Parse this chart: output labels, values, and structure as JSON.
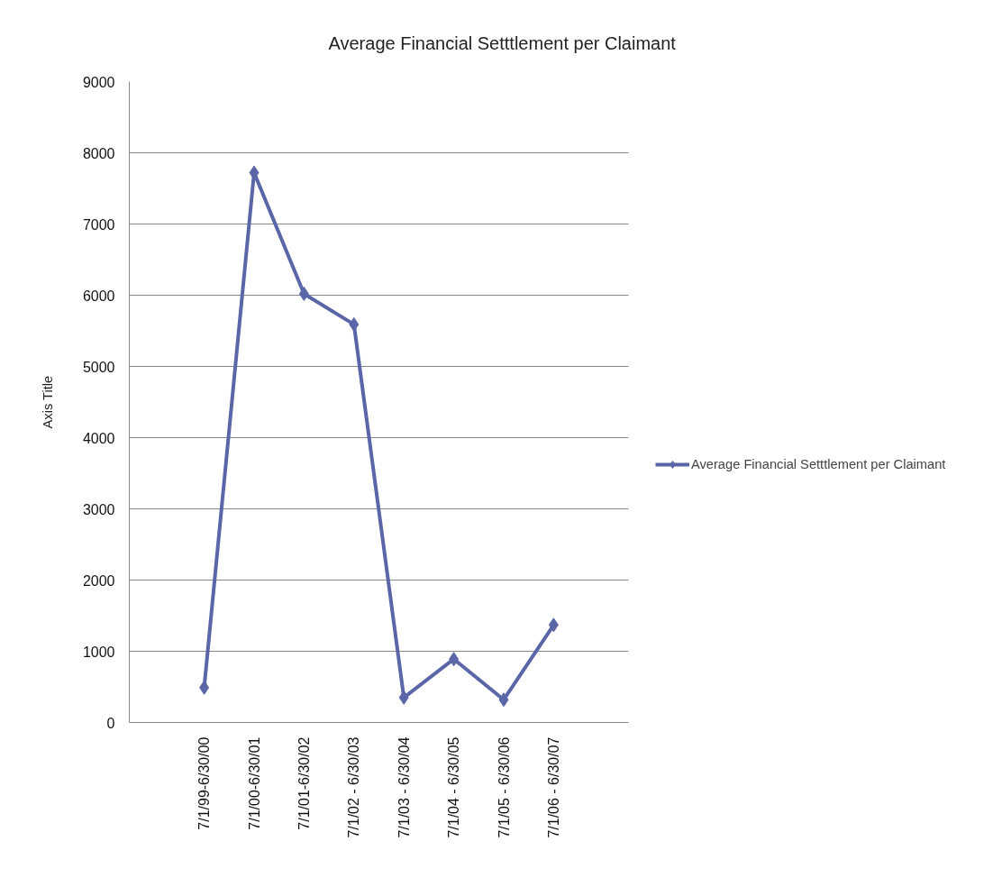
{
  "chart_data": {
    "type": "line",
    "title": "Average Financial Setttlement per Claimant",
    "ylabel": "Axis Title",
    "categories": [
      null,
      "7/1/99-6/30/00",
      "7/1/00-6/30/01",
      "7/1/01-6/30/02",
      "7/1/02 - 6/30/03",
      "7/1/03 - 6/30/04",
      "7/1/04 - 6/30/05",
      "7/1/05 - 6/30/06",
      "7/1/06 - 6/30/07",
      null
    ],
    "series": [
      {
        "name": "Average Financial Setttlement per Claimant",
        "color": "#5a66a8",
        "values": [
          null,
          490,
          7720,
          6020,
          5590,
          350,
          890,
          320,
          1370,
          null
        ]
      }
    ],
    "ylim": [
      0,
      9000
    ],
    "yticks": [
      0,
      1000,
      2000,
      3000,
      4000,
      5000,
      6000,
      7000,
      8000,
      9000
    ],
    "grid": "y",
    "legend": "right",
    "marker": "diamond",
    "line_style": "solid"
  }
}
